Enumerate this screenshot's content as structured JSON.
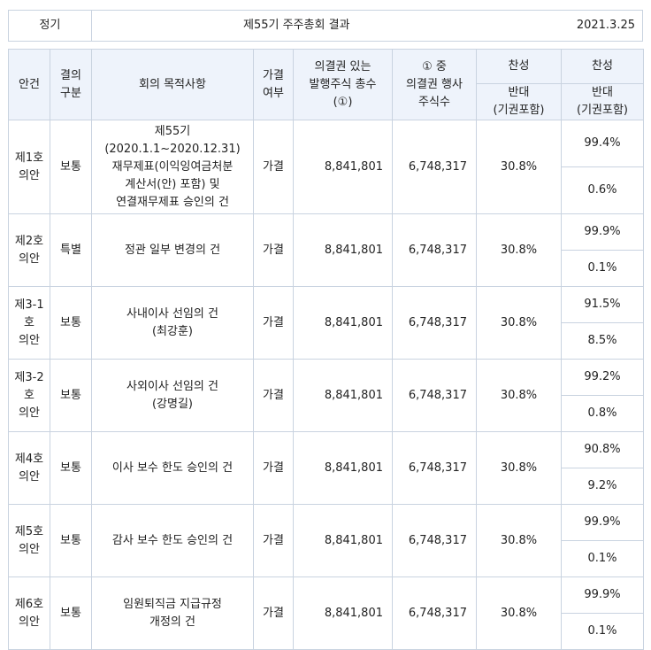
{
  "header": {
    "meeting_type": "정기",
    "title": "제55기 주주총회 결과",
    "date": "2021.3.25"
  },
  "columns": {
    "agenda": "안건",
    "resolution_type_1": "결의",
    "resolution_type_2": "구분",
    "purpose": "회의 목적사항",
    "passed_1": "가결",
    "passed_2": "여부",
    "issued_1": "의결권 있는",
    "issued_2": "발행주식 총수",
    "issued_3": "(①)",
    "exercised_1": "① 중",
    "exercised_2": "의결권 행사",
    "exercised_3": "주식수",
    "approve_a": "찬성",
    "oppose_a_1": "반대",
    "oppose_a_2": "(기권포함)",
    "approve_b": "찬성",
    "oppose_b_1": "반대",
    "oppose_b_2": "(기권포함)"
  },
  "rows": [
    {
      "agenda_lines": [
        "제1호",
        "의안"
      ],
      "type": "보통",
      "purpose_lines": [
        "제55기",
        "(2020.1.1~2020.12.31)",
        "재무제표(이익잉여금처분",
        "계산서(안) 포함) 및",
        "연결재무제표 승인의 건"
      ],
      "passed": "가결",
      "issued": "8,841,801",
      "exercised": "6,748,317",
      "pct": "30.8%",
      "approve": "99.4%",
      "oppose": "0.6%"
    },
    {
      "agenda_lines": [
        "제2호",
        "의안"
      ],
      "type": "특별",
      "purpose_lines": [
        "정관 일부 변경의 건"
      ],
      "passed": "가결",
      "issued": "8,841,801",
      "exercised": "6,748,317",
      "pct": "30.8%",
      "approve": "99.9%",
      "oppose": "0.1%"
    },
    {
      "agenda_lines": [
        "제3-1",
        "호",
        "의안"
      ],
      "type": "보통",
      "purpose_lines": [
        "사내이사 선임의 건",
        "(최강훈)"
      ],
      "passed": "가결",
      "issued": "8,841,801",
      "exercised": "6,748,317",
      "pct": "30.8%",
      "approve": "91.5%",
      "oppose": "8.5%"
    },
    {
      "agenda_lines": [
        "제3-2",
        "호",
        "의안"
      ],
      "type": "보통",
      "purpose_lines": [
        "사외이사 선임의 건",
        "(강명길)"
      ],
      "passed": "가결",
      "issued": "8,841,801",
      "exercised": "6,748,317",
      "pct": "30.8%",
      "approve": "99.2%",
      "oppose": "0.8%"
    },
    {
      "agenda_lines": [
        "제4호",
        "의안"
      ],
      "type": "보통",
      "purpose_lines": [
        "이사 보수 한도 승인의 건"
      ],
      "passed": "가결",
      "issued": "8,841,801",
      "exercised": "6,748,317",
      "pct": "30.8%",
      "approve": "90.8%",
      "oppose": "9.2%"
    },
    {
      "agenda_lines": [
        "제5호",
        "의안"
      ],
      "type": "보통",
      "purpose_lines": [
        "감사 보수 한도 승인의 건"
      ],
      "passed": "가결",
      "issued": "8,841,801",
      "exercised": "6,748,317",
      "pct": "30.8%",
      "approve": "99.9%",
      "oppose": "0.1%"
    },
    {
      "agenda_lines": [
        "제6호",
        "의안"
      ],
      "type": "보통",
      "purpose_lines": [
        "임원퇴직금 지급규정",
        "개정의 건"
      ],
      "passed": "가결",
      "issued": "8,841,801",
      "exercised": "6,748,317",
      "pct": "30.8%",
      "approve": "99.9%",
      "oppose": "0.1%"
    }
  ]
}
